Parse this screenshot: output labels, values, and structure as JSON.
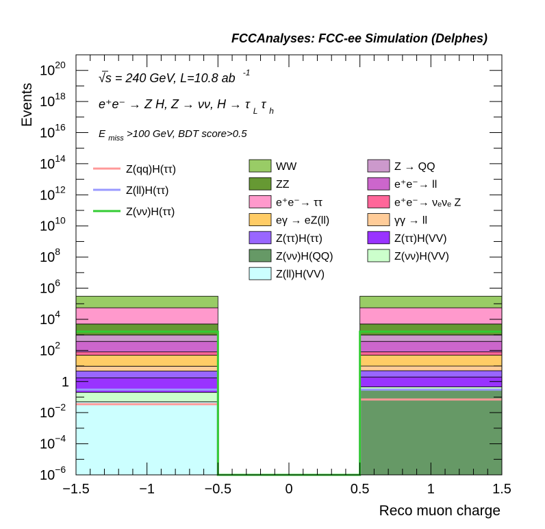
{
  "chart_data": {
    "type": "bar",
    "title": "FCCAnalyses: FCC-ee Simulation (Delphes)",
    "xlabel": "Reco muon charge",
    "ylabel": "Events",
    "xlim": [
      -1.5,
      1.5
    ],
    "ylim": [
      1e-06,
      1e+21
    ],
    "yscale": "log",
    "x_ticks": [
      {
        "value": -1.5,
        "label": "−1.5"
      },
      {
        "value": -1,
        "label": "−1"
      },
      {
        "value": -0.5,
        "label": "−0.5"
      },
      {
        "value": 0,
        "label": "0"
      },
      {
        "value": 0.5,
        "label": "0.5"
      },
      {
        "value": 1,
        "label": "1"
      },
      {
        "value": 1.5,
        "label": "1.5"
      }
    ],
    "y_ticks": [
      {
        "exp": -6,
        "base": "10",
        "sup": "−6"
      },
      {
        "exp": -4,
        "base": "10",
        "sup": "−4"
      },
      {
        "exp": -2,
        "base": "10",
        "sup": "−2"
      },
      {
        "exp": 0,
        "base": "1",
        "sup": ""
      },
      {
        "exp": 2,
        "base": "10",
        "sup": "2"
      },
      {
        "exp": 4,
        "base": "10",
        "sup": "4"
      },
      {
        "exp": 6,
        "base": "10",
        "sup": "6"
      },
      {
        "exp": 8,
        "base": "10",
        "sup": "8"
      },
      {
        "exp": 10,
        "base": "10",
        "sup": "10"
      },
      {
        "exp": 12,
        "base": "10",
        "sup": "12"
      },
      {
        "exp": 14,
        "base": "10",
        "sup": "14"
      },
      {
        "exp": 16,
        "base": "10",
        "sup": "16"
      },
      {
        "exp": 18,
        "base": "10",
        "sup": "18"
      },
      {
        "exp": 20,
        "base": "10",
        "sup": "20"
      }
    ],
    "annotations": {
      "energy": "√s = 240 GeV, L=10.8 ab",
      "lumi_exp": "-1",
      "process": "e⁺e⁻ → Z H, Z → νν, H → τ",
      "process_sub1": "L",
      "process_tau": "τ",
      "process_sub2": "h",
      "cut_e": "E",
      "cut_sub": "miss",
      "cut_rest": ">100 GeV, BDT score>0.5"
    },
    "bins": [
      {
        "low": -1.5,
        "high": -0.5
      },
      {
        "low": -0.5,
        "high": 0.5
      },
      {
        "low": 0.5,
        "high": 1.5
      }
    ],
    "stack": [
      {
        "name": "Z(ll)H(VV)",
        "color": "#ccffff",
        "values": [
          0.05,
          0,
          0
        ]
      },
      {
        "name": "Z(νν)H(QQ)",
        "color": "#669966",
        "values": [
          0,
          0,
          0.3
        ]
      },
      {
        "name": "Z(νν)H(VV)",
        "color": "#ccffcc",
        "values": [
          0.15,
          0,
          0.15
        ]
      },
      {
        "name": "Z(ττ)H(VV)",
        "color": "#9933ff",
        "values": [
          1.5,
          0,
          1.5
        ]
      },
      {
        "name": "Z(ττ)H(ττ)",
        "color": "#9966ff",
        "values": [
          3.0,
          0,
          3.0
        ]
      },
      {
        "name": "γγ → ll",
        "color": "#ffcc99",
        "values": [
          5.0,
          0,
          5.0
        ]
      },
      {
        "name": "eγ → eZ(ll)",
        "color": "#ffcc66",
        "values": [
          40,
          0,
          40
        ]
      },
      {
        "name": "e⁺e⁻→ ν_eν_e Z",
        "color": "#ff6699",
        "values": [
          30,
          0,
          30
        ]
      },
      {
        "name": "e⁺e⁻→ ll",
        "color": "#cc66cc",
        "values": [
          300,
          0,
          300
        ]
      },
      {
        "name": "Z → QQ",
        "color": "#cc99cc",
        "values": [
          600,
          0,
          600
        ]
      },
      {
        "name": "ZZ",
        "color": "#669933",
        "values": [
          4000,
          0,
          4000
        ]
      },
      {
        "name": "e⁺e⁻→ ττ",
        "color": "#ff99cc",
        "values": [
          50000,
          0,
          50000
        ]
      },
      {
        "name": "WW",
        "color": "#99cc66",
        "values": [
          250000,
          0,
          250000
        ]
      }
    ],
    "signals": [
      {
        "name": "Z(qq)H(ττ)",
        "color": "#ff9999",
        "values": [
          0.035,
          0,
          0.07
        ]
      },
      {
        "name": "Z(ll)H(ττ)",
        "color": "#9999ff",
        "values": [
          0.3,
          0,
          0.3
        ]
      },
      {
        "name": "Z(νν)H(ττ)",
        "color": "#33cc33",
        "values": [
          1600,
          0,
          1600
        ]
      }
    ],
    "legend_left": [
      {
        "label": "Z(qq)H(ττ)",
        "color": "#ff9999",
        "kind": "line"
      },
      {
        "label": "Z(ll)H(ττ)",
        "color": "#9999ff",
        "kind": "line"
      },
      {
        "label": "Z(νν)H(ττ)",
        "color": "#33cc33",
        "kind": "line"
      }
    ],
    "legend_mid": [
      {
        "label": "WW",
        "color": "#99cc66"
      },
      {
        "label": "ZZ",
        "color": "#669933"
      },
      {
        "label": "e⁺e⁻→ ττ",
        "color": "#ff99cc"
      },
      {
        "label": "eγ → eZ(ll)",
        "color": "#ffcc66"
      },
      {
        "label": "Z(ττ)H(ττ)",
        "color": "#9966ff"
      },
      {
        "label": "Z(νν)H(QQ)",
        "color": "#669966"
      },
      {
        "label": "Z(ll)H(VV)",
        "color": "#ccffff"
      }
    ],
    "legend_right": [
      {
        "label": "Z → QQ",
        "color": "#cc99cc"
      },
      {
        "label": "e⁺e⁻→ ll",
        "color": "#cc66cc"
      },
      {
        "label": "e⁺e⁻→ νₑνₑ Z",
        "color": "#ff6699"
      },
      {
        "label": "γγ → ll",
        "color": "#ffcc99"
      },
      {
        "label": "Z(ττ)H(VV)",
        "color": "#9933ff"
      },
      {
        "label": "Z(νν)H(VV)",
        "color": "#ccffcc"
      }
    ]
  }
}
